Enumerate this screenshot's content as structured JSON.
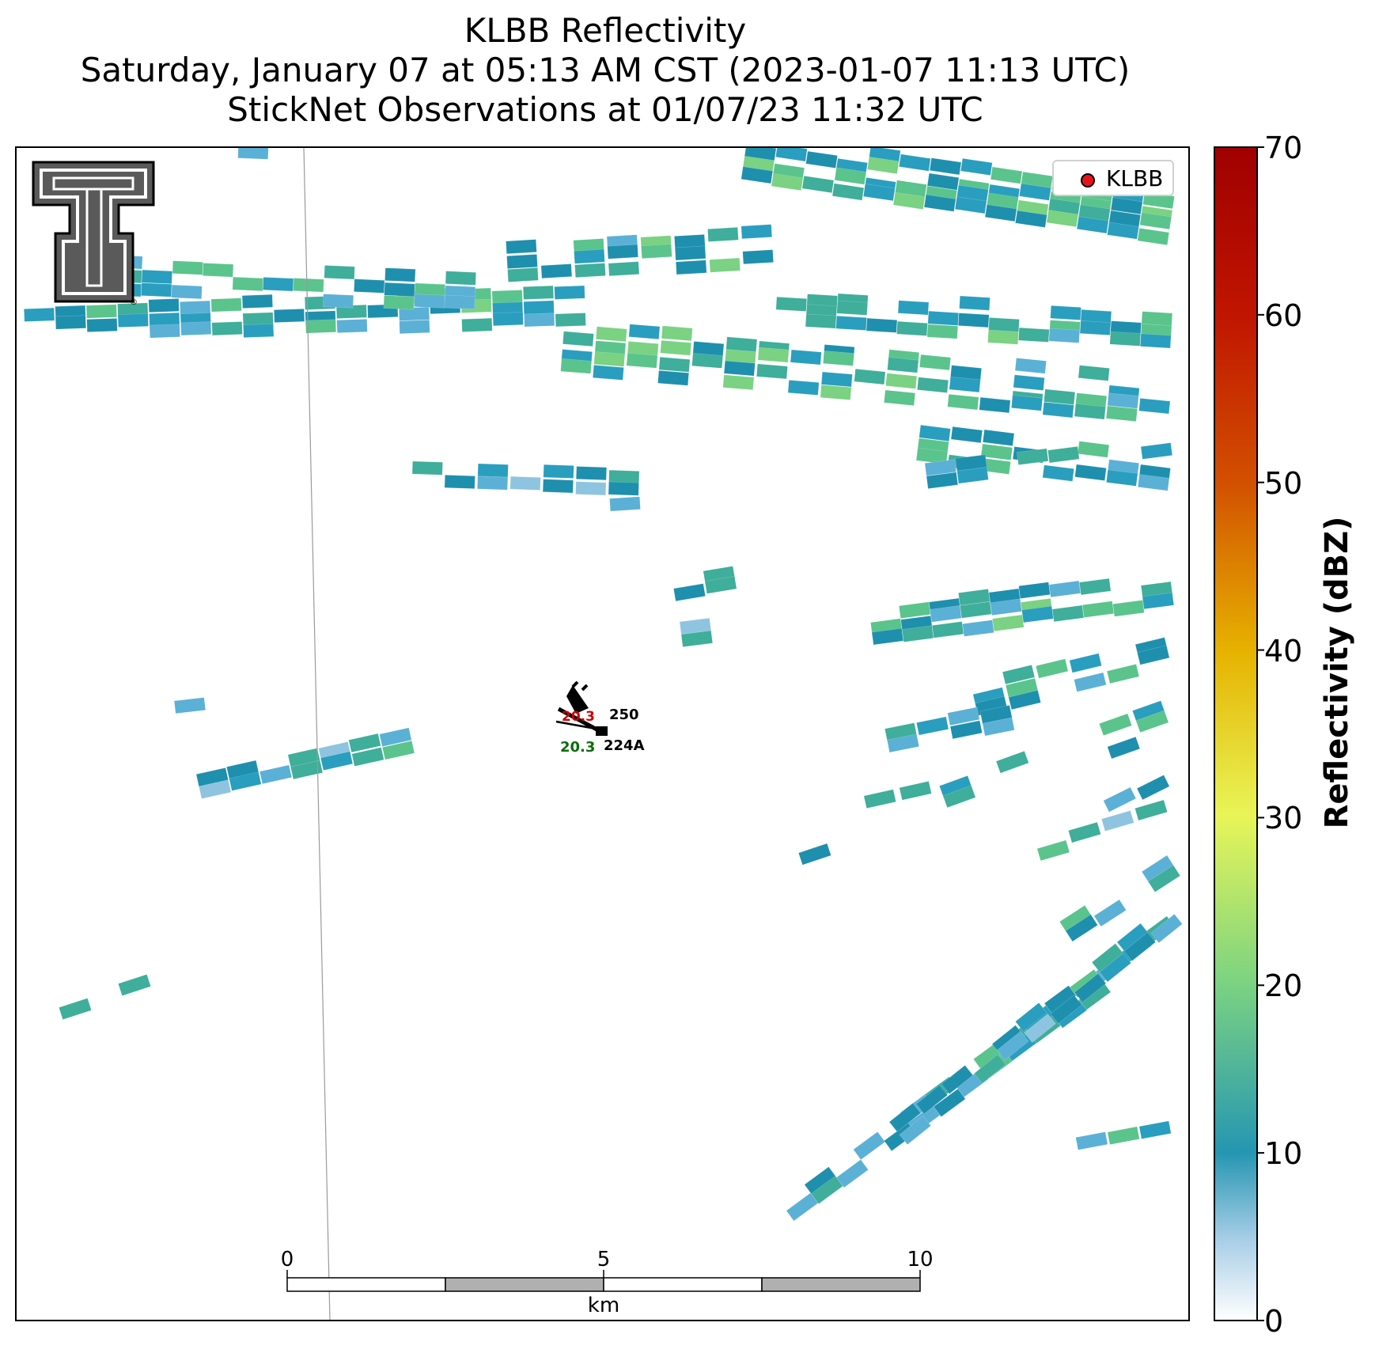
{
  "title": {
    "line1": "KLBB Reflectivity",
    "line2": "Saturday, January 07 at 05:13 AM CST (2023-01-07 11:13 UTC)",
    "line3": "StickNet Observations at 01/07/23 11:32 UTC"
  },
  "colorbar": {
    "label": "Reflectivity (dBZ)",
    "min": 0,
    "max": 70,
    "ticks": [
      "0",
      "10",
      "20",
      "30",
      "40",
      "50",
      "60",
      "70"
    ],
    "colors": [
      "#ffffff",
      "#a6cde6",
      "#2596b2",
      "#7ad282",
      "#e8f558",
      "#e6b200",
      "#d25000",
      "#a00000"
    ]
  },
  "legend": {
    "label": "KLBB",
    "marker_color": "#e8141b"
  },
  "scale_bar": {
    "unit": "km",
    "labels": [
      "0",
      "5",
      "10"
    ]
  },
  "station": {
    "ids": [
      "250",
      "224A"
    ],
    "value": "20.3",
    "value_color": "#0a6e0a",
    "hidden_value_color": "#cc0000"
  },
  "logo": {
    "name": "texas-tech-double-t-logo"
  },
  "reflectivity_colors": [
    "#c6dff0",
    "#8ec4e0",
    "#5bb0d6",
    "#2a9ebe",
    "#1f8fae",
    "#3fae9a",
    "#5ac48c",
    "#7ad282"
  ]
}
